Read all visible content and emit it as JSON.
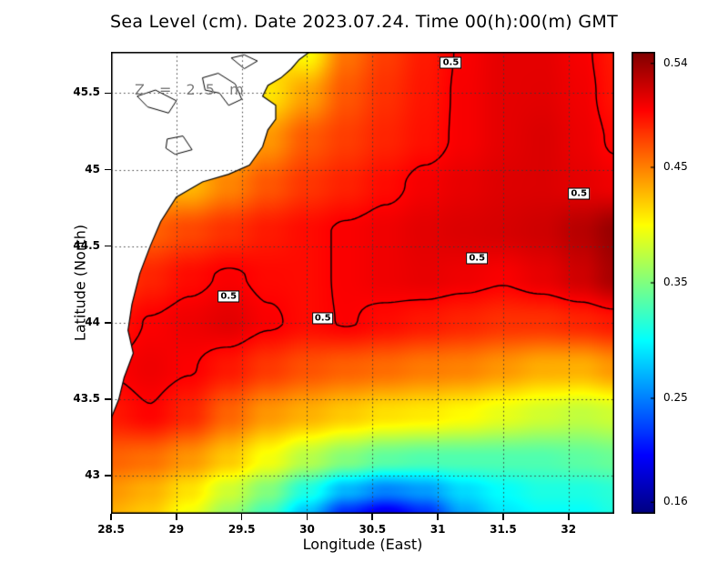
{
  "title": "Sea Level (cm). Date 2023.07.24. Time 00(h):00(m) GMT",
  "annotation": "Z = 2.5 m",
  "axes": {
    "xlabel": "Longitude (East)",
    "ylabel": "Latitude (North)",
    "xticks": [
      28.5,
      29,
      29.5,
      30,
      30.5,
      31,
      31.5,
      32
    ],
    "xtick_labels": [
      "28.5",
      "29",
      "29.5",
      "30",
      "30.5",
      "31",
      "31.5",
      "32"
    ],
    "yticks": [
      43,
      43.5,
      44,
      44.5,
      45,
      45.5
    ],
    "ytick_labels": [
      "43",
      "43.5",
      "44",
      "44.5",
      "45",
      "45.5"
    ]
  },
  "colorbar": {
    "scale_min": 0.15,
    "scale_max": 0.55,
    "tick_values": [
      0.54,
      0.45,
      0.35,
      0.25,
      0.16
    ],
    "tick_labels": [
      "0.54",
      "0.45",
      "0.35",
      "0.25",
      "0.16"
    ]
  },
  "chart_data": {
    "type": "heatmap",
    "title": "Sea Level (cm). Date 2023.07.24. Time 00(h):00(m) GMT",
    "xlabel": "Longitude (East)",
    "ylabel": "Latitude (North)",
    "x_range": [
      28.5,
      32.35
    ],
    "y_range": [
      42.75,
      45.77
    ],
    "colormap": "jet",
    "color_range": [
      0.15,
      0.55
    ],
    "grid_style": "dotted",
    "lon": [
      28.5,
      28.8,
      29.1,
      29.4,
      29.7,
      30.0,
      30.3,
      30.6,
      30.9,
      31.2,
      31.5,
      31.8,
      32.1,
      32.35
    ],
    "lat": [
      45.77,
      45.5,
      45.2,
      44.9,
      44.6,
      44.3,
      44.0,
      43.7,
      43.4,
      43.1,
      42.9,
      42.75
    ],
    "values": [
      [
        0.45,
        0.45,
        0.448,
        0.44,
        0.42,
        0.4,
        0.455,
        0.476,
        0.49,
        0.502,
        0.51,
        0.51,
        0.503,
        0.491
      ],
      [
        0.442,
        0.442,
        0.44,
        0.43,
        0.41,
        0.436,
        0.466,
        0.481,
        0.492,
        0.503,
        0.51,
        0.511,
        0.505,
        0.493
      ],
      [
        0.438,
        0.434,
        0.43,
        0.422,
        0.441,
        0.465,
        0.476,
        0.486,
        0.494,
        0.503,
        0.51,
        0.514,
        0.507,
        0.498
      ],
      [
        0.43,
        0.43,
        0.428,
        0.448,
        0.466,
        0.479,
        0.487,
        0.496,
        0.504,
        0.509,
        0.513,
        0.514,
        0.51,
        0.506
      ],
      [
        0.452,
        0.462,
        0.472,
        0.481,
        0.49,
        0.496,
        0.502,
        0.506,
        0.511,
        0.514,
        0.516,
        0.519,
        0.528,
        0.54
      ],
      [
        0.472,
        0.486,
        0.496,
        0.502,
        0.497,
        0.496,
        0.502,
        0.506,
        0.509,
        0.506,
        0.502,
        0.509,
        0.519,
        0.534
      ],
      [
        0.491,
        0.501,
        0.506,
        0.511,
        0.502,
        0.496,
        0.501,
        0.496,
        0.491,
        0.486,
        0.481,
        0.481,
        0.486,
        0.491
      ],
      [
        0.501,
        0.506,
        0.501,
        0.491,
        0.478,
        0.468,
        0.462,
        0.458,
        0.452,
        0.449,
        0.441,
        0.432,
        0.431,
        0.441
      ],
      [
        0.491,
        0.499,
        0.486,
        0.461,
        0.441,
        0.431,
        0.421,
        0.412,
        0.408,
        0.401,
        0.391,
        0.382,
        0.376,
        0.381
      ],
      [
        0.461,
        0.456,
        0.441,
        0.421,
        0.396,
        0.371,
        0.351,
        0.336,
        0.331,
        0.331,
        0.331,
        0.331,
        0.336,
        0.341
      ],
      [
        0.441,
        0.431,
        0.411,
        0.381,
        0.351,
        0.311,
        0.271,
        0.251,
        0.261,
        0.286,
        0.301,
        0.311,
        0.311,
        0.316
      ],
      [
        0.431,
        0.421,
        0.396,
        0.361,
        0.326,
        0.276,
        0.216,
        0.191,
        0.216,
        0.266,
        0.291,
        0.301,
        0.301,
        0.311
      ]
    ],
    "contour_level": 0.5,
    "contour_label": "0.5",
    "contour_label_positions": [
      {
        "lon": 31.1,
        "lat": 45.7
      },
      {
        "lon": 32.08,
        "lat": 44.84
      },
      {
        "lon": 31.3,
        "lat": 44.42
      },
      {
        "lon": 30.12,
        "lat": 44.03
      },
      {
        "lon": 29.4,
        "lat": 44.17
      }
    ],
    "land": {
      "coast": [
        [
          28.5,
          45.77
        ],
        [
          30.02,
          45.77
        ],
        [
          29.94,
          45.72
        ],
        [
          29.88,
          45.66
        ],
        [
          29.8,
          45.6
        ],
        [
          29.7,
          45.55
        ],
        [
          29.66,
          45.48
        ],
        [
          29.76,
          45.42
        ],
        [
          29.76,
          45.33
        ],
        [
          29.7,
          45.26
        ],
        [
          29.66,
          45.15
        ],
        [
          29.56,
          45.03
        ],
        [
          29.4,
          44.97
        ],
        [
          29.2,
          44.92
        ],
        [
          29.0,
          44.82
        ],
        [
          28.88,
          44.66
        ],
        [
          28.8,
          44.5
        ],
        [
          28.72,
          44.32
        ],
        [
          28.66,
          44.12
        ],
        [
          28.63,
          43.95
        ],
        [
          28.67,
          43.8
        ],
        [
          28.6,
          43.64
        ],
        [
          28.56,
          43.5
        ],
        [
          28.5,
          43.37
        ]
      ],
      "lakes": [
        [
          [
            29.2,
            45.6
          ],
          [
            29.32,
            45.63
          ],
          [
            29.45,
            45.56
          ],
          [
            29.5,
            45.46
          ],
          [
            29.4,
            45.42
          ],
          [
            29.33,
            45.5
          ],
          [
            29.22,
            45.52
          ]
        ],
        [
          [
            28.7,
            45.48
          ],
          [
            28.84,
            45.52
          ],
          [
            29.0,
            45.45
          ],
          [
            28.94,
            45.37
          ],
          [
            28.78,
            45.41
          ]
        ],
        [
          [
            28.93,
            45.2
          ],
          [
            29.05,
            45.22
          ],
          [
            29.12,
            45.13
          ],
          [
            28.99,
            45.1
          ],
          [
            28.92,
            45.14
          ]
        ],
        [
          [
            29.42,
            45.73
          ],
          [
            29.52,
            45.66
          ],
          [
            29.62,
            45.71
          ],
          [
            29.52,
            45.75
          ]
        ]
      ]
    }
  }
}
